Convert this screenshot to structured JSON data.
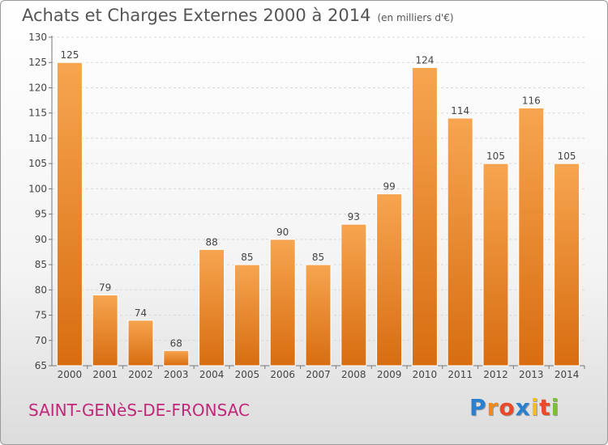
{
  "chart_data": {
    "type": "bar",
    "title": "Achats et Charges Externes 2000 à 2014",
    "subtitle": "(en milliers d'€)",
    "categories": [
      "2000",
      "2001",
      "2002",
      "2003",
      "2004",
      "2005",
      "2006",
      "2007",
      "2008",
      "2009",
      "2010",
      "2011",
      "2012",
      "2013",
      "2014"
    ],
    "values": [
      125,
      79,
      74,
      68,
      88,
      85,
      90,
      85,
      93,
      99,
      124,
      114,
      105,
      116,
      105
    ],
    "ylim": [
      65,
      130
    ],
    "yticks": [
      65,
      70,
      75,
      80,
      85,
      90,
      95,
      100,
      105,
      110,
      115,
      120,
      125,
      130
    ],
    "grid": true,
    "bar_color_top": "#f7a550",
    "bar_color_bottom": "#d86d10"
  },
  "commune": "SAINT-GENèS-DE-FRONSAC",
  "logo": {
    "letters": [
      "P",
      "r",
      "o",
      "x",
      "i",
      "t",
      "i"
    ],
    "colors": [
      "#2a7fd0",
      "#f08a1c",
      "#e84a2a",
      "#2a7fd0",
      "#f0c020",
      "#e84a2a",
      "#7cbf3a"
    ]
  }
}
